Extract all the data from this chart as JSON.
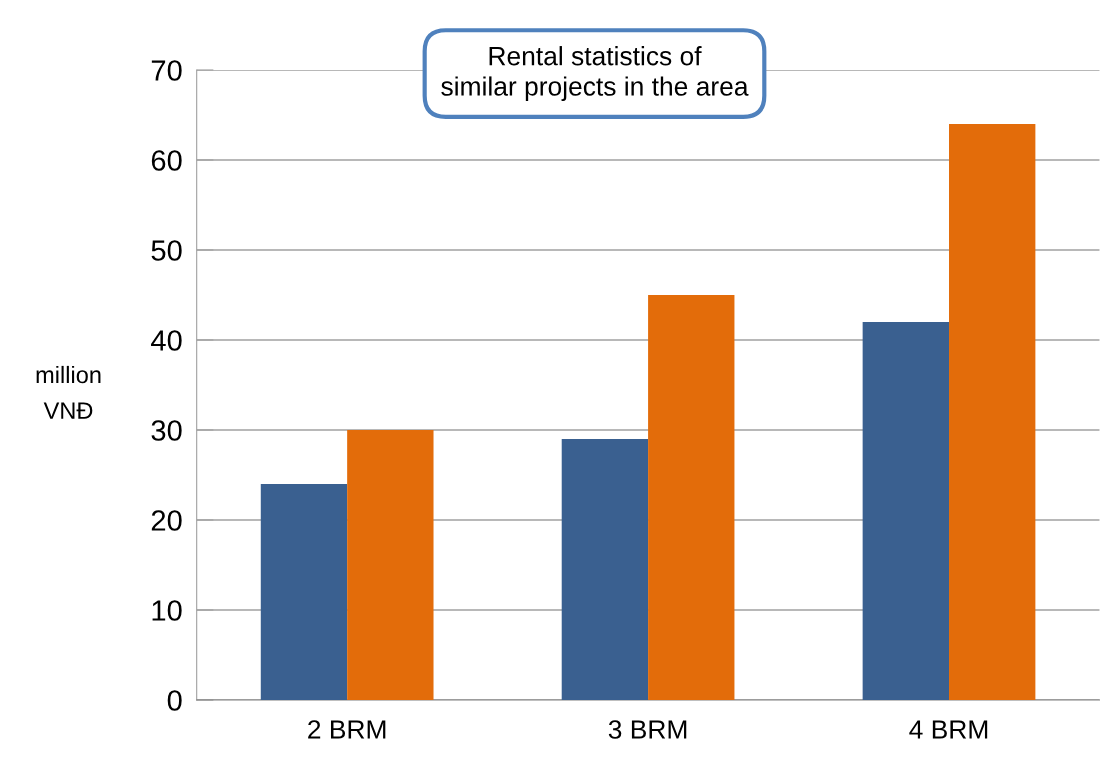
{
  "chart_data": {
    "type": "bar",
    "title": "Rental statistics of\nsimilar projects in the area",
    "ylabel": "million\nVNĐ",
    "categories": [
      "2 BRM",
      "3 BRM",
      "4 BRM"
    ],
    "series": [
      {
        "color": "#3a6090",
        "values": [
          24,
          29,
          42
        ]
      },
      {
        "color": "#e36c0a",
        "values": [
          30,
          45,
          64
        ]
      }
    ],
    "ylim": [
      0,
      70
    ],
    "yticks": [
      0,
      10,
      20,
      30,
      40,
      50,
      60,
      70
    ],
    "grid": "y",
    "legend": false
  }
}
